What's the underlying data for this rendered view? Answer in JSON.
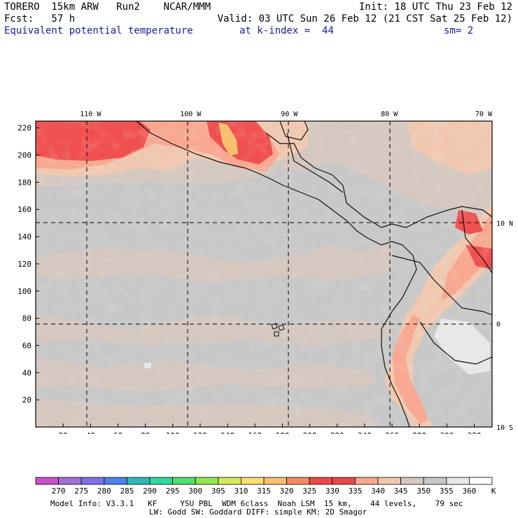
{
  "header": {
    "line1_left": "TORERO  15km ARW   Run2    NCAR/MMM",
    "line1_right": "Init: 18 UTC Thu 23 Feb 12",
    "line2_left": "Fcst:   57 h",
    "line2_right": "Valid: 03 UTC Sun 26 Feb 12 (21 CST Sat 25 Feb 12)",
    "field_name": "Equivalent potential temperature",
    "k_index": "at k-index =  44",
    "smoothing": "sm= 2"
  },
  "map": {
    "x_ticks": [
      "20",
      "40",
      "60",
      "80",
      "100",
      "120",
      "140",
      "160",
      "180",
      "200",
      "220",
      "240",
      "260",
      "280",
      "300",
      "320"
    ],
    "x_tick_values": [
      20,
      40,
      60,
      80,
      100,
      120,
      140,
      160,
      180,
      200,
      220,
      240,
      260,
      280,
      300,
      320
    ],
    "y_ticks": [
      "20",
      "40",
      "60",
      "80",
      "100",
      "120",
      "140",
      "160",
      "180",
      "200",
      "220"
    ],
    "y_tick_values": [
      20,
      40,
      60,
      80,
      100,
      120,
      140,
      160,
      180,
      200,
      220
    ],
    "x_range": [
      0,
      333
    ],
    "y_range": [
      0,
      225
    ],
    "lon_labels": [
      {
        "text": "110 W",
        "grid_x": 40
      },
      {
        "text": "100 W",
        "grid_x": 113
      },
      {
        "text": "90 W",
        "grid_x": 185
      },
      {
        "text": "80 W",
        "grid_x": 258
      },
      {
        "text": "70 W",
        "grid_x": 333
      }
    ],
    "lat_labels": [
      {
        "text": "10 N",
        "grid_y": 150
      },
      {
        "text": "0",
        "grid_y": 76
      },
      {
        "text": "10 S",
        "grid_y": 0
      }
    ]
  },
  "colorbar": {
    "labels": [
      "270",
      "275",
      "280",
      "285",
      "290",
      "295",
      "300",
      "305",
      "310",
      "315",
      "320",
      "325",
      "330",
      "335",
      "340",
      "345",
      "350",
      "355",
      "360"
    ],
    "unit": "K",
    "colors": [
      "#c850c8",
      "#a070d8",
      "#8070e8",
      "#5080e8",
      "#30b8b8",
      "#30d8a0",
      "#50e070",
      "#90e850",
      "#d8e860",
      "#f8e070",
      "#f8c070",
      "#f88860",
      "#f04848",
      "#e84848",
      "#f8a890",
      "#f0c8b0",
      "#d4c8c0",
      "#c8c8c8",
      "#e8e8e8",
      "#ffffff"
    ]
  },
  "footer": {
    "line1": "Model Info: V3.3.1   KF     YSU PBL  WDM 6class  Noah LSM  15 km,    44 levels,    79 sec",
    "line2": "LW: Godd SW: Goddard DIFF: simple KM: 2D Smagor"
  }
}
